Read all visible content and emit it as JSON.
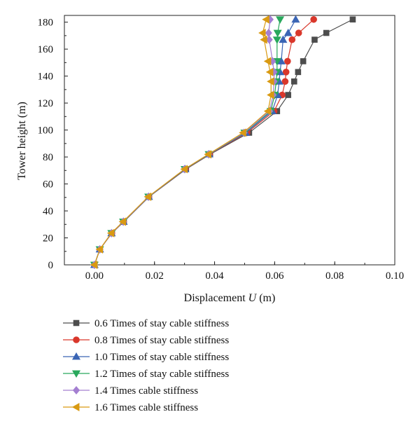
{
  "chart_data": {
    "type": "line",
    "title": "",
    "xlabel_prefix": "Displacement ",
    "xlabel_var": "U",
    "xlabel_suffix": " (m)",
    "ylabel": "Tower height (m)",
    "xlim": [
      -0.01,
      0.1
    ],
    "ylim": [
      0,
      185
    ],
    "x_ticks": [
      "0.00",
      "0.02",
      "0.04",
      "0.06",
      "0.08",
      "0.10"
    ],
    "y_ticks": [
      "0",
      "20",
      "40",
      "60",
      "80",
      "100",
      "120",
      "140",
      "160",
      "180"
    ],
    "legend_position": "bottom",
    "y": [
      0,
      11.5,
      23.5,
      32,
      50.5,
      71,
      82,
      98,
      114,
      126,
      136,
      143,
      151,
      167,
      172,
      182
    ],
    "series": [
      {
        "name": "0.6 Times of stay cable stiffness",
        "marker": "square",
        "color": "#4d4d4d",
        "x": [
          0.0,
          0.0018,
          0.0058,
          0.0098,
          0.0182,
          0.0305,
          0.0385,
          0.0515,
          0.0608,
          0.0645,
          0.0665,
          0.0678,
          0.0695,
          0.0733,
          0.0772,
          0.086
        ]
      },
      {
        "name": "0.8 Times of stay cable stiffness",
        "marker": "circle",
        "color": "#d9372b",
        "x": [
          0.0,
          0.0018,
          0.0058,
          0.0097,
          0.0181,
          0.0303,
          0.0383,
          0.0508,
          0.0598,
          0.0625,
          0.0635,
          0.0638,
          0.0643,
          0.0658,
          0.068,
          0.073
        ]
      },
      {
        "name": "1.0 Times of stay cable stiffness",
        "marker": "triangle-up",
        "color": "#3a65b5",
        "x": [
          0.0,
          0.0018,
          0.0057,
          0.0097,
          0.0181,
          0.0302,
          0.0382,
          0.0504,
          0.0592,
          0.061,
          0.0615,
          0.0618,
          0.0622,
          0.0628,
          0.0645,
          0.067
        ]
      },
      {
        "name": "1.2 Times of stay cable stiffness",
        "marker": "triangle-down",
        "color": "#28a85c",
        "x": [
          0.0,
          0.0018,
          0.0057,
          0.0096,
          0.018,
          0.0301,
          0.0381,
          0.05,
          0.0587,
          0.06,
          0.0605,
          0.0608,
          0.0608,
          0.0608,
          0.061,
          0.0618
        ]
      },
      {
        "name": "1.4 Times cable stiffness",
        "marker": "diamond",
        "color": "#a47fd1",
        "x": [
          0.0,
          0.0018,
          0.0057,
          0.0096,
          0.018,
          0.03,
          0.038,
          0.0498,
          0.0583,
          0.0595,
          0.0598,
          0.0598,
          0.0593,
          0.0582,
          0.058,
          0.0585
        ]
      },
      {
        "name": "1.6 Times cable stiffness",
        "marker": "triangle-left",
        "color": "#d99a12",
        "x": [
          0.0,
          0.0018,
          0.0056,
          0.0095,
          0.0179,
          0.03,
          0.0379,
          0.0495,
          0.0578,
          0.0588,
          0.0588,
          0.0585,
          0.0578,
          0.0565,
          0.056,
          0.0572
        ]
      }
    ]
  }
}
